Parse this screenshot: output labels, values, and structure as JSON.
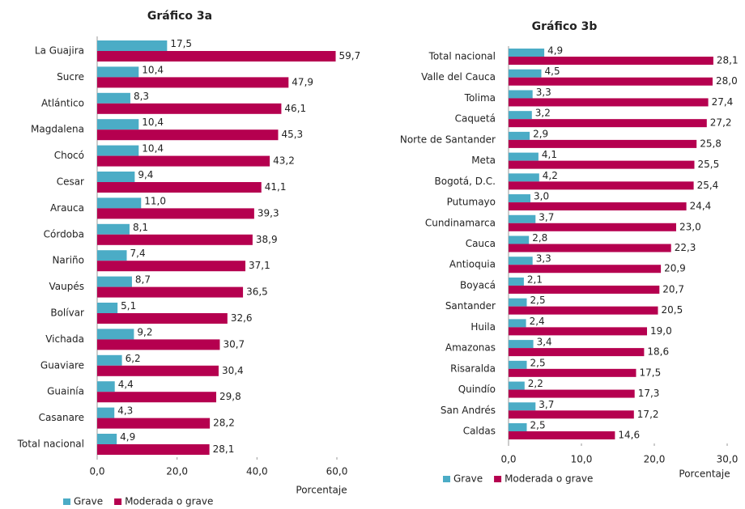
{
  "chart_data": [
    {
      "type": "bar",
      "orientation": "horizontal",
      "title": "Gráfico 3a",
      "x_label": "Porcentaje",
      "categories": [
        "La Guajira",
        "Sucre",
        "Atlántico",
        "Magdalena",
        "Chocó",
        "Cesar",
        "Arauca",
        "Córdoba",
        "Nariño",
        "Vaupés",
        "Bolívar",
        "Vichada",
        "Guaviare",
        "Guainía",
        "Casanare",
        "Total nacional"
      ],
      "series": [
        {
          "name": "Grave",
          "color": "#4bacc6",
          "values": [
            17.5,
            10.4,
            8.3,
            10.4,
            10.4,
            9.4,
            11.0,
            8.1,
            7.4,
            8.7,
            5.1,
            9.2,
            6.2,
            4.4,
            4.3,
            4.9
          ],
          "value_labels": [
            "17,5",
            "10,4",
            "8,3",
            "10,4",
            "10,4",
            "9,4",
            "11,0",
            "8,1",
            "7,4",
            "8,7",
            "5,1",
            "9,2",
            "6,2",
            "4,4",
            "4,3",
            "4,9"
          ]
        },
        {
          "name": "Moderada o grave",
          "color": "#b5004f",
          "values": [
            59.7,
            47.9,
            46.1,
            45.3,
            43.2,
            41.1,
            39.3,
            38.9,
            37.1,
            36.5,
            32.6,
            30.7,
            30.4,
            29.8,
            28.2,
            28.1
          ],
          "value_labels": [
            "59,7",
            "47,9",
            "46,1",
            "45,3",
            "43,2",
            "41,1",
            "39,3",
            "38,9",
            "37,1",
            "36,5",
            "32,6",
            "30,7",
            "30,4",
            "29,8",
            "28,2",
            "28,1"
          ]
        }
      ],
      "xlim": [
        0,
        60
      ],
      "xticks": [
        {
          "value": 0,
          "label": "0,0"
        },
        {
          "value": 20,
          "label": "20,0"
        },
        {
          "value": 40,
          "label": "40,0"
        },
        {
          "value": 60,
          "label": "60,0"
        }
      ],
      "legend": "bottom"
    },
    {
      "type": "bar",
      "orientation": "horizontal",
      "title": "Gráfico 3b",
      "x_label": "Porcentaje",
      "categories": [
        "Total nacional",
        "Valle del Cauca",
        "Tolima",
        "Caquetá",
        "Norte de Santander",
        "Meta",
        "Bogotá, D.C.",
        "Putumayo",
        "Cundinamarca",
        "Cauca",
        "Antioquia",
        "Boyacá",
        "Santander",
        "Huila",
        "Amazonas",
        "Risaralda",
        "Quindío",
        "San Andrés",
        "Caldas"
      ],
      "series": [
        {
          "name": "Grave",
          "color": "#4bacc6",
          "values": [
            4.9,
            4.5,
            3.3,
            3.2,
            2.9,
            4.1,
            4.2,
            3.0,
            3.7,
            2.8,
            3.3,
            2.1,
            2.5,
            2.4,
            3.4,
            2.5,
            2.2,
            3.7,
            2.5
          ],
          "value_labels": [
            "4,9",
            "4,5",
            "3,3",
            "3,2",
            "2,9",
            "4,1",
            "4,2",
            "3,0",
            "3,7",
            "2,8",
            "3,3",
            "2,1",
            "2,5",
            "2,4",
            "3,4",
            "2,5",
            "2,2",
            "3,7",
            "2,5"
          ]
        },
        {
          "name": "Moderada o grave",
          "color": "#b5004f",
          "values": [
            28.1,
            28.0,
            27.4,
            27.2,
            25.8,
            25.5,
            25.4,
            24.4,
            23.0,
            22.3,
            20.9,
            20.7,
            20.5,
            19.0,
            18.6,
            17.5,
            17.3,
            17.2,
            14.6
          ],
          "value_labels": [
            "28,1",
            "28,0",
            "27,4",
            "27,2",
            "25,8",
            "25,5",
            "25,4",
            "24,4",
            "23,0",
            "22,3",
            "20,9",
            "20,7",
            "20,5",
            "19,0",
            "18,6",
            "17,5",
            "17,3",
            "17,2",
            "14,6"
          ]
        }
      ],
      "xlim": [
        0,
        30
      ],
      "xticks": [
        {
          "value": 0,
          "label": "0,0"
        },
        {
          "value": 10,
          "label": "10,0"
        },
        {
          "value": 20,
          "label": "20,0"
        },
        {
          "value": 30,
          "label": "30,0"
        }
      ],
      "legend": "bottom"
    }
  ]
}
